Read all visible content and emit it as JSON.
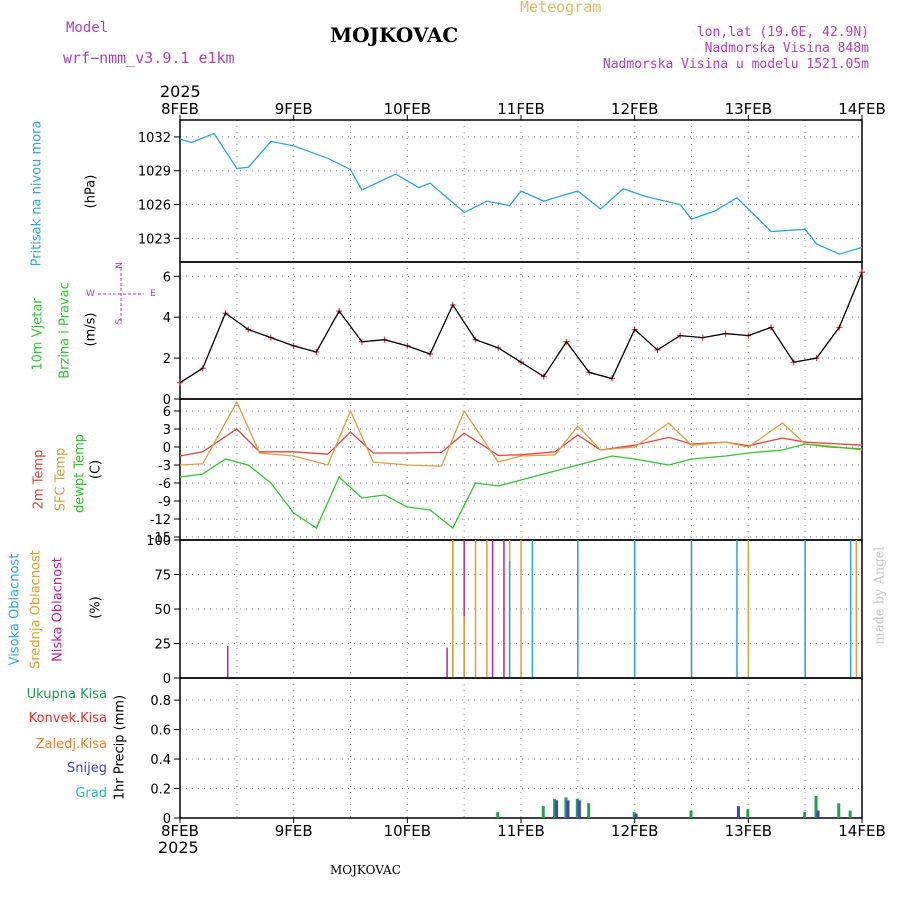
{
  "header": {
    "model_label": "Model",
    "model_name": "wrf−nmm_v3.9.1  e1km",
    "location": "MOJKOVAC",
    "product": "Meteogram",
    "lonlat": "lon,lat (19.6E, 42.9N)",
    "altitude": "Nadmorska Visina 848m",
    "model_altitude": "Nadmorska Visina u modelu 1521.05m",
    "year_top": "2025",
    "year_bottom": "2025",
    "footer_location": "MOJKOVAC",
    "watermark": "made by Angel"
  },
  "panel_labels": {
    "pressure": {
      "name": "Pritisak na nivou mora",
      "unit": "(hPa)"
    },
    "wind": {
      "name": "10m Vjetar",
      "name2": "Brzina i Pravac",
      "unit": "(m/s)"
    },
    "temp": {
      "name1": "2m Temp",
      "name2": "SFC Temp",
      "name3": "dewpt Temp",
      "unit": "(C)"
    },
    "cloud": {
      "name1": "Visoka Oblacnost",
      "name2": "Srednja Oblacnost",
      "name3": "Niska Oblacnost",
      "unit": "(%)"
    },
    "precip": {
      "legend": [
        "Ukupna Kisa",
        "Konvek.Kisa",
        "Zaledj.Kisa",
        "Snijeg",
        "Grad"
      ],
      "unit": "1hr Precip (mm)"
    }
  },
  "compass": {
    "n": "N",
    "s": "S",
    "e": "E",
    "w": "W"
  },
  "colors": {
    "pressure": "#29a8e0",
    "t2m": "#e84040",
    "sfc": "#e0a040",
    "dewpt": "#30c830",
    "high_cloud": "#29a8e0",
    "mid_cloud": "#e0a030",
    "low_cloud": "#c020a0",
    "total_rain": "#1ea050",
    "conv_rain": "#e83030",
    "frz_rain": "#f08030",
    "snow": "#4040d8",
    "hail": "#20c0c0"
  },
  "chart_data": [
    {
      "type": "line",
      "title": "",
      "ylabel": "Pritisak na nivou mora (hPa)",
      "x_ticks": [
        "8FEB",
        "9FEB",
        "10FEB",
        "11FEB",
        "12FEB",
        "13FEB",
        "14FEB"
      ],
      "ylim": [
        1020.9,
        1033.5
      ],
      "y_ticks": [
        1023,
        1026,
        1029,
        1032
      ],
      "series": [
        {
          "name": "Pritisak na nivou mora",
          "x": [
            0,
            0.1,
            0.3,
            0.5,
            0.6,
            0.8,
            1.0,
            1.3,
            1.5,
            1.6,
            1.9,
            2.1,
            2.2,
            2.5,
            2.7,
            2.9,
            3.0,
            3.2,
            3.5,
            3.7,
            3.9,
            4.1,
            4.4,
            4.5,
            4.7,
            4.9,
            5.2,
            5.5,
            5.6,
            5.8,
            6.0
          ],
          "values": [
            1031.8,
            1031.5,
            1032.3,
            1029.2,
            1029.3,
            1031.6,
            1031.2,
            1030.1,
            1029.1,
            1027.3,
            1028.7,
            1027.5,
            1027.9,
            1025.3,
            1026.3,
            1025.9,
            1027.2,
            1026.3,
            1027.2,
            1025.6,
            1027.4,
            1026.7,
            1026.0,
            1024.7,
            1025.4,
            1026.6,
            1023.6,
            1023.8,
            1022.5,
            1021.6,
            1022.2
          ]
        }
      ]
    },
    {
      "type": "line",
      "ylabel": "10m Vjetar Brzina i Pravac (m/s)",
      "ylim": [
        0,
        6.7
      ],
      "y_ticks": [
        0,
        2,
        4,
        6
      ],
      "series": [
        {
          "name": "10m Vjetar",
          "x": [
            0,
            0.2,
            0.4,
            0.6,
            0.8,
            1.0,
            1.2,
            1.4,
            1.6,
            1.8,
            2.0,
            2.2,
            2.4,
            2.6,
            2.8,
            3.0,
            3.2,
            3.4,
            3.6,
            3.8,
            4.0,
            4.2,
            4.4,
            4.6,
            4.8,
            5.0,
            5.2,
            5.4,
            5.6,
            5.8,
            6.0
          ],
          "values": [
            0.8,
            1.5,
            4.2,
            3.4,
            3.0,
            2.6,
            2.3,
            4.3,
            2.8,
            2.9,
            2.6,
            2.2,
            4.6,
            2.9,
            2.5,
            1.8,
            1.1,
            2.8,
            1.3,
            1.0,
            3.4,
            2.4,
            3.1,
            3.0,
            3.2,
            3.1,
            3.5,
            1.8,
            2.0,
            3.5,
            6.2
          ]
        }
      ]
    },
    {
      "type": "line",
      "ylabel": "(C)",
      "ylim": [
        -15.5,
        8
      ],
      "y_ticks": [
        -15,
        -12,
        -9,
        -6,
        -3,
        0,
        3,
        6
      ],
      "series": [
        {
          "name": "2m Temp",
          "x": [
            0,
            0.2,
            0.5,
            0.7,
            1.0,
            1.3,
            1.5,
            1.7,
            2.0,
            2.3,
            2.5,
            2.8,
            3.0,
            3.3,
            3.5,
            3.7,
            4.0,
            4.3,
            4.5,
            4.8,
            5.0,
            5.3,
            5.5,
            5.7,
            6.0
          ],
          "values": [
            -1.5,
            -0.8,
            3.0,
            -0.8,
            -0.8,
            -1.2,
            2.5,
            -1.0,
            -1.0,
            -0.9,
            2.3,
            -1.4,
            -1.3,
            -0.8,
            2.0,
            -0.5,
            0.3,
            1.6,
            0.5,
            0.8,
            0.2,
            1.5,
            0.8,
            0.6,
            0.3
          ]
        },
        {
          "name": "SFC Temp",
          "x": [
            0,
            0.2,
            0.5,
            0.7,
            1.0,
            1.3,
            1.5,
            1.7,
            2.0,
            2.3,
            2.5,
            2.8,
            3.0,
            3.3,
            3.5,
            3.7,
            4.0,
            4.3,
            4.5,
            4.8,
            5.0,
            5.3,
            5.5,
            5.7,
            6.0
          ],
          "values": [
            -3.0,
            -2.8,
            7.5,
            -1.0,
            -1.5,
            -3.0,
            6.0,
            -2.5,
            -3.0,
            -3.2,
            6.0,
            -2.5,
            -1.5,
            -1.3,
            3.5,
            -0.5,
            0.0,
            4.0,
            0.3,
            0.8,
            0.0,
            4.0,
            0.5,
            0.2,
            -0.5
          ]
        },
        {
          "name": "dewpt Temp",
          "x": [
            0,
            0.2,
            0.4,
            0.6,
            0.8,
            1.0,
            1.2,
            1.4,
            1.6,
            1.8,
            2.0,
            2.2,
            2.4,
            2.6,
            2.8,
            3.0,
            3.2,
            3.5,
            3.8,
            4.0,
            4.3,
            4.5,
            4.8,
            5.0,
            5.3,
            5.5,
            5.7,
            6.0
          ],
          "values": [
            -5.0,
            -4.5,
            -2.0,
            -3.0,
            -6.0,
            -11.0,
            -13.5,
            -5.0,
            -8.5,
            -8.0,
            -10.0,
            -10.5,
            -13.5,
            -6.0,
            -6.5,
            -5.5,
            -4.5,
            -3.0,
            -1.5,
            -2.0,
            -3.0,
            -2.0,
            -1.5,
            -1.0,
            -0.5,
            0.5,
            0.0,
            -0.3
          ]
        }
      ]
    },
    {
      "type": "bar",
      "ylabel": "(%)",
      "ylim": [
        0,
        100
      ],
      "y_ticks": [
        0,
        25,
        50,
        75,
        100
      ],
      "series": [
        {
          "name": "Niska Oblacnost",
          "x": [
            0.42,
            2.35,
            2.4,
            2.5,
            2.75,
            2.85
          ],
          "values": [
            23,
            22,
            100,
            100,
            100,
            100
          ]
        },
        {
          "name": "Srednja Oblacnost",
          "x": [
            2.4,
            2.5,
            2.6,
            2.7,
            2.9,
            3.0,
            3.5,
            4.0,
            4.5,
            5.0,
            5.5,
            5.95
          ],
          "values": [
            100,
            45,
            100,
            100,
            100,
            100,
            100,
            100,
            100,
            100,
            100,
            100
          ]
        },
        {
          "name": "Visoka Oblacnost",
          "x": [
            2.9,
            3.1,
            3.5,
            4.0,
            4.5,
            4.9,
            5.5,
            5.9
          ],
          "values": [
            85,
            100,
            100,
            100,
            100,
            100,
            100,
            100
          ]
        }
      ]
    },
    {
      "type": "bar",
      "ylabel": "1hr Precip (mm)",
      "ylim": [
        0,
        0.95
      ],
      "y_ticks": [
        0,
        0.2,
        0.4,
        0.6,
        0.8
      ],
      "series": [
        {
          "name": "Ukupna Kisa",
          "x": [
            2.8,
            3.2,
            3.3,
            3.4,
            3.5,
            3.6,
            4.0,
            4.5,
            5.0,
            5.5,
            5.6,
            5.8,
            5.9
          ],
          "values": [
            0.04,
            0.08,
            0.13,
            0.14,
            0.13,
            0.1,
            0.04,
            0.05,
            0.06,
            0.04,
            0.15,
            0.1,
            0.05
          ]
        },
        {
          "name": "Snijeg",
          "x": [
            3.3,
            3.4,
            3.5,
            4.0,
            4.9,
            5.6
          ],
          "values": [
            0.12,
            0.12,
            0.12,
            0.03,
            0.08,
            0.05
          ]
        }
      ]
    }
  ]
}
